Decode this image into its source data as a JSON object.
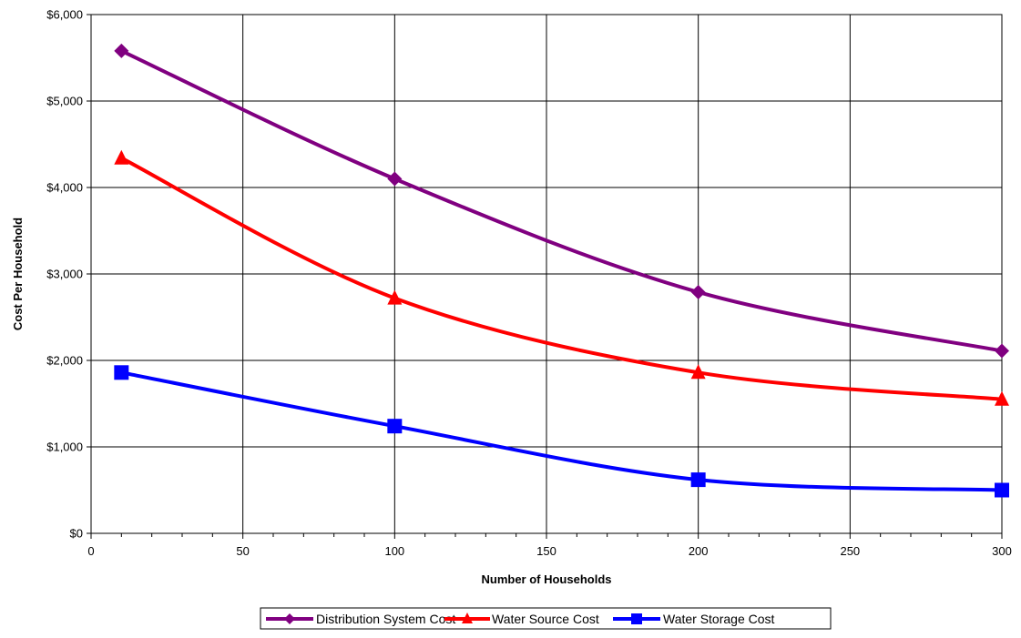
{
  "chart_data": {
    "type": "line",
    "title": "",
    "xlabel": "Number of Households",
    "ylabel": "Cost Per Household",
    "xlim": [
      0,
      300
    ],
    "ylim": [
      0,
      6000
    ],
    "x_ticks": [
      0,
      50,
      100,
      150,
      200,
      250,
      300
    ],
    "x_tick_labels": [
      "0",
      "50",
      "100",
      "150",
      "200",
      "250",
      "300"
    ],
    "y_ticks": [
      0,
      1000,
      2000,
      3000,
      4000,
      5000,
      6000
    ],
    "y_tick_labels": [
      "$0",
      "$1,000",
      "$2,000",
      "$3,000",
      "$4,000",
      "$5,000",
      "$6,000"
    ],
    "grid": true,
    "legend_position": "bottom",
    "x": [
      10,
      100,
      200,
      300
    ],
    "series": [
      {
        "name": "Distribution System Cost",
        "values": [
          5580,
          4100,
          2790,
          2110
        ],
        "color": "#800080",
        "marker": "diamond"
      },
      {
        "name": "Water Source Cost",
        "values": [
          4340,
          2720,
          1860,
          1550
        ],
        "color": "#ff0000",
        "marker": "triangle"
      },
      {
        "name": "Water Storage Cost",
        "values": [
          1860,
          1240,
          620,
          500
        ],
        "color": "#0000ff",
        "marker": "square"
      }
    ]
  }
}
